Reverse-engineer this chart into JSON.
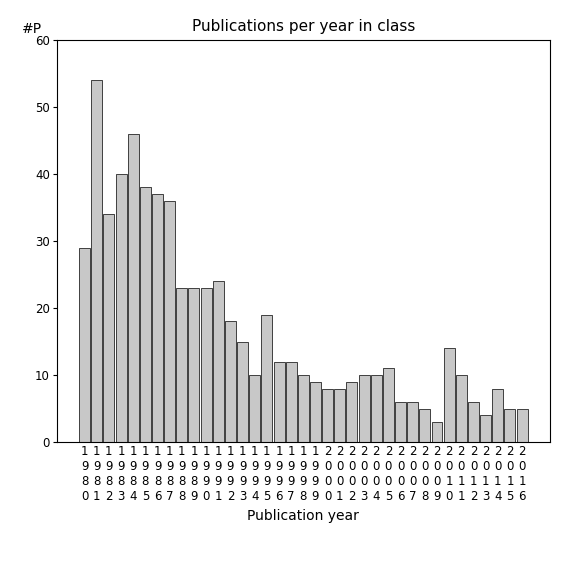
{
  "title": "Publications per year in class",
  "xlabel": "Publication year",
  "ylabel": "#P",
  "years": [
    1980,
    1981,
    1982,
    1983,
    1984,
    1985,
    1986,
    1987,
    1988,
    1989,
    1990,
    1991,
    1992,
    1993,
    1994,
    1995,
    1996,
    1997,
    1998,
    1999,
    2000,
    2001,
    2002,
    2003,
    2004,
    2005,
    2006,
    2007,
    2008,
    2009,
    2010,
    2011,
    2012,
    2013,
    2014,
    2015,
    2016
  ],
  "values": [
    29,
    54,
    34,
    40,
    46,
    38,
    37,
    36,
    23,
    23,
    23,
    24,
    18,
    15,
    10,
    19,
    12,
    12,
    10,
    9,
    8,
    8,
    9,
    10,
    10,
    11,
    6,
    6,
    5,
    3,
    14,
    10,
    6,
    4,
    8,
    5,
    5
  ],
  "bar_color": "#c8c8c8",
  "bar_edgecolor": "#000000",
  "ylim": [
    0,
    60
  ],
  "yticks": [
    0,
    10,
    20,
    30,
    40,
    50,
    60
  ],
  "background_color": "#ffffff",
  "title_fontsize": 11,
  "label_fontsize": 10,
  "tick_fontsize": 8.5
}
